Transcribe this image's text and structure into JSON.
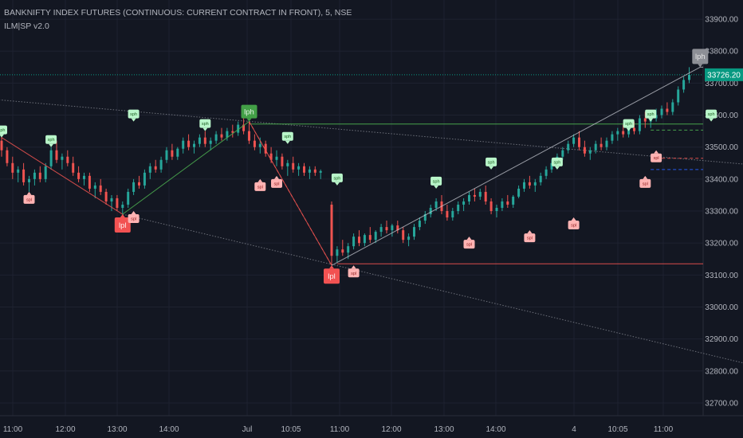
{
  "header": {
    "title": "BANKNIFTY INDEX FUTURES (CONTINUOUS: CURRENT CONTRACT IN FRONT), 5, NSE",
    "indicator": "ILM|SP v2.0"
  },
  "colors": {
    "background": "#131722",
    "grid": "#1e2230",
    "up": "#26a69a",
    "down": "#ef5350",
    "swing_high": "#4caf50",
    "swing_low": "#ef5350",
    "current_price_badge": "#089981"
  },
  "chart_data": {
    "type": "candlestick",
    "symbol": "BANKNIFTY1!",
    "interval": "5",
    "ylim": [
      32660,
      33960
    ],
    "y_ticks": [
      33900,
      33800,
      33700,
      33600,
      33500,
      33400,
      33300,
      33200,
      33100,
      33000,
      32900,
      32800,
      32700
    ],
    "y_tick_labels": [
      "33900.00",
      "33800.00",
      "33700.00",
      "33600.00",
      "33500.00",
      "33400.00",
      "33300.00",
      "33200.00",
      "33100.00",
      "33000.00",
      "32900.00",
      "32800.00",
      "32700.00"
    ],
    "x_tick_labels": [
      "11:00",
      "12:00",
      "13:00",
      "14:00",
      "Jul",
      "10:05",
      "11:00",
      "12:00",
      "13:00",
      "14:00",
      "4",
      "10:05",
      "11:00"
    ],
    "x_range_bars": [
      0,
      180
    ],
    "current_price": 33726.2,
    "current_price_label": "33726.20",
    "swing_path_day1": [
      [
        0,
        33530
      ],
      [
        22,
        33290
      ],
      [
        45,
        33580
      ],
      [
        60,
        33130
      ]
    ],
    "swing_path_day2": [
      [
        60,
        33130
      ],
      [
        84,
        33360
      ],
      [
        106,
        33550
      ],
      [
        127,
        33750
      ]
    ],
    "candles_day1": [
      [
        33520,
        33540,
        33470,
        33490
      ],
      [
        33490,
        33500,
        33440,
        33450
      ],
      [
        33450,
        33470,
        33400,
        33420
      ],
      [
        33420,
        33440,
        33390,
        33430
      ],
      [
        33430,
        33450,
        33380,
        33390
      ],
      [
        33390,
        33410,
        33360,
        33400
      ],
      [
        33400,
        33430,
        33380,
        33420
      ],
      [
        33420,
        33440,
        33390,
        33400
      ],
      [
        33400,
        33450,
        33390,
        33440
      ],
      [
        33440,
        33500,
        33430,
        33490
      ],
      [
        33490,
        33520,
        33450,
        33460
      ],
      [
        33460,
        33480,
        33430,
        33470
      ],
      [
        33470,
        33490,
        33440,
        33450
      ],
      [
        33450,
        33470,
        33410,
        33420
      ],
      [
        33420,
        33440,
        33390,
        33400
      ],
      [
        33400,
        33420,
        33380,
        33410
      ],
      [
        33410,
        33420,
        33360,
        33370
      ],
      [
        33370,
        33390,
        33340,
        33380
      ],
      [
        33380,
        33400,
        33350,
        33360
      ],
      [
        33360,
        33370,
        33320,
        33330
      ],
      [
        33330,
        33350,
        33300,
        33340
      ],
      [
        33340,
        33350,
        33300,
        33310
      ],
      [
        33310,
        33330,
        33290,
        33320
      ],
      [
        33320,
        33370,
        33310,
        33360
      ],
      [
        33360,
        33400,
        33350,
        33390
      ],
      [
        33390,
        33410,
        33370,
        33380
      ],
      [
        33380,
        33430,
        33370,
        33420
      ],
      [
        33420,
        33450,
        33400,
        33440
      ],
      [
        33440,
        33460,
        33420,
        33430
      ],
      [
        33430,
        33470,
        33420,
        33460
      ],
      [
        33460,
        33500,
        33450,
        33490
      ],
      [
        33490,
        33510,
        33460,
        33470
      ],
      [
        33470,
        33500,
        33460,
        33495
      ],
      [
        33495,
        33530,
        33480,
        33520
      ],
      [
        33520,
        33540,
        33490,
        33500
      ],
      [
        33500,
        33520,
        33480,
        33510
      ],
      [
        33510,
        33540,
        33500,
        33530
      ],
      [
        33530,
        33550,
        33500,
        33510
      ],
      [
        33510,
        33530,
        33490,
        33520
      ],
      [
        33520,
        33550,
        33510,
        33540
      ],
      [
        33540,
        33560,
        33520,
        33530
      ],
      [
        33530,
        33560,
        33520,
        33550
      ],
      [
        33550,
        33570,
        33530,
        33545
      ],
      [
        33545,
        33580,
        33535,
        33570
      ],
      [
        33570,
        33590,
        33540,
        33550
      ],
      [
        33550,
        33580,
        33510,
        33520
      ],
      [
        33520,
        33540,
        33490,
        33500
      ],
      [
        33500,
        33530,
        33480,
        33510
      ],
      [
        33510,
        33520,
        33470,
        33480
      ],
      [
        33480,
        33500,
        33450,
        33460
      ],
      [
        33460,
        33490,
        33440,
        33470
      ],
      [
        33470,
        33480,
        33430,
        33440
      ],
      [
        33440,
        33460,
        33410,
        33450
      ],
      [
        33450,
        33470,
        33420,
        33430
      ],
      [
        33430,
        33450,
        33410,
        33440
      ],
      [
        33440,
        33450,
        33410,
        33420
      ],
      [
        33420,
        33440,
        33400,
        33430
      ],
      [
        33430,
        33440,
        33410,
        33420
      ],
      [
        33420,
        33430,
        33400,
        33425
      ]
    ],
    "candles_day2": [
      [
        33320,
        33330,
        33130,
        33160
      ],
      [
        33160,
        33190,
        33140,
        33180
      ],
      [
        33180,
        33210,
        33160,
        33170
      ],
      [
        33170,
        33200,
        33150,
        33190
      ],
      [
        33190,
        33230,
        33180,
        33220
      ],
      [
        33220,
        33240,
        33190,
        33200
      ],
      [
        33200,
        33230,
        33190,
        33225
      ],
      [
        33225,
        33250,
        33200,
        33210
      ],
      [
        33210,
        33240,
        33200,
        33235
      ],
      [
        33235,
        33260,
        33220,
        33250
      ],
      [
        33250,
        33270,
        33230,
        33240
      ],
      [
        33240,
        33260,
        33220,
        33255
      ],
      [
        33255,
        33270,
        33230,
        33240
      ],
      [
        33240,
        33250,
        33200,
        33210
      ],
      [
        33210,
        33230,
        33190,
        33220
      ],
      [
        33220,
        33260,
        33210,
        33250
      ],
      [
        33250,
        33280,
        33240,
        33270
      ],
      [
        33270,
        33300,
        33260,
        33290
      ],
      [
        33290,
        33320,
        33280,
        33310
      ],
      [
        33310,
        33340,
        33300,
        33330
      ],
      [
        33330,
        33350,
        33290,
        33300
      ],
      [
        33300,
        33320,
        33270,
        33280
      ],
      [
        33280,
        33310,
        33270,
        33300
      ],
      [
        33300,
        33330,
        33290,
        33320
      ],
      [
        33320,
        33340,
        33300,
        33330
      ],
      [
        33330,
        33360,
        33320,
        33350
      ],
      [
        33350,
        33370,
        33330,
        33345
      ],
      [
        33345,
        33370,
        33335,
        33360
      ],
      [
        33360,
        33380,
        33320,
        33330
      ],
      [
        33330,
        33340,
        33290,
        33300
      ],
      [
        33300,
        33320,
        33280,
        33310
      ],
      [
        33310,
        33340,
        33300,
        33330
      ],
      [
        33330,
        33350,
        33310,
        33320
      ],
      [
        33320,
        33350,
        33310,
        33345
      ],
      [
        33345,
        33380,
        33340,
        33370
      ],
      [
        33370,
        33400,
        33360,
        33390
      ],
      [
        33390,
        33410,
        33370,
        33380
      ],
      [
        33380,
        33400,
        33360,
        33390
      ],
      [
        33390,
        33420,
        33380,
        33410
      ],
      [
        33410,
        33440,
        33400,
        33430
      ],
      [
        33430,
        33460,
        33420,
        33450
      ],
      [
        33450,
        33480,
        33440,
        33470
      ],
      [
        33470,
        33500,
        33460,
        33490
      ],
      [
        33490,
        33520,
        33480,
        33510
      ],
      [
        33510,
        33540,
        33500,
        33530
      ],
      [
        33530,
        33550,
        33490,
        33500
      ],
      [
        33500,
        33520,
        33470,
        33480
      ],
      [
        33480,
        33500,
        33460,
        33490
      ],
      [
        33490,
        33520,
        33480,
        33510
      ],
      [
        33510,
        33530,
        33490,
        33500
      ],
      [
        33500,
        33530,
        33490,
        33520
      ],
      [
        33520,
        33550,
        33510,
        33540
      ],
      [
        33540,
        33560,
        33520,
        33550
      ],
      [
        33550,
        33570,
        33530,
        33540
      ],
      [
        33540,
        33570,
        33530,
        33560
      ],
      [
        33560,
        33580,
        33540,
        33550
      ],
      [
        33550,
        33600,
        33540,
        33590
      ],
      [
        33590,
        33610,
        33560,
        33580
      ],
      [
        33580,
        33600,
        33560,
        33590
      ],
      [
        33590,
        33620,
        33580,
        33600
      ],
      [
        33600,
        33630,
        33590,
        33620
      ],
      [
        33620,
        33640,
        33600,
        33610
      ],
      [
        33610,
        33650,
        33600,
        33640
      ],
      [
        33640,
        33690,
        33630,
        33680
      ],
      [
        33680,
        33720,
        33670,
        33710
      ],
      [
        33710,
        33750,
        33700,
        33726
      ]
    ],
    "levels": [
      {
        "price": 33572,
        "from_bar": 45,
        "color": "#4caf50",
        "style": "solid"
      },
      {
        "price": 33553,
        "from_bar": 118,
        "color": "#4caf50",
        "style": "dashed"
      },
      {
        "price": 33465,
        "from_bar": 118,
        "color": "#ef5350",
        "style": "dashed"
      },
      {
        "price": 33430,
        "from_bar": 118,
        "color": "#2962ff",
        "style": "dashed"
      },
      {
        "price": 33135,
        "from_bar": 61,
        "color": "#ef5350",
        "style": "solid"
      },
      {
        "price": 33750,
        "from_bar": 127,
        "color": "#b2b5be",
        "style": "solid"
      }
    ],
    "trendlines": [
      {
        "from": [
          -2,
          33650
        ],
        "to": [
          180,
          33380
        ],
        "color": "#8a8d96"
      },
      {
        "from": [
          22,
          33290
        ],
        "to": [
          170,
          32680
        ],
        "color": "#8a8d96"
      }
    ],
    "labels": [
      {
        "text": "lph",
        "bar": 45,
        "price": 33580,
        "kind": "big-high"
      },
      {
        "text": "lpl",
        "bar": 22,
        "price": 33290,
        "kind": "big-low"
      },
      {
        "text": "lpl",
        "bar": 60,
        "price": 33130,
        "kind": "big-low"
      },
      {
        "text": "lph",
        "bar": 127,
        "price": 33750,
        "kind": "gray-high"
      },
      {
        "text": "sph",
        "bar": 0,
        "price": 33530,
        "kind": "small-high"
      },
      {
        "text": "sph",
        "bar": 9,
        "price": 33500,
        "kind": "small-high"
      },
      {
        "text": "sph",
        "bar": 24,
        "price": 33580,
        "kind": "small-high"
      },
      {
        "text": "sph",
        "bar": 37,
        "price": 33550,
        "kind": "small-high"
      },
      {
        "text": "sph",
        "bar": 52,
        "price": 33510,
        "kind": "small-high"
      },
      {
        "text": "sph",
        "bar": 61,
        "price": 33380,
        "kind": "small-high"
      },
      {
        "text": "sph",
        "bar": 79,
        "price": 33370,
        "kind": "small-high"
      },
      {
        "text": "sph",
        "bar": 89,
        "price": 33430,
        "kind": "small-high"
      },
      {
        "text": "sph",
        "bar": 101,
        "price": 33430,
        "kind": "small-high"
      },
      {
        "text": "sph",
        "bar": 114,
        "price": 33550,
        "kind": "small-high"
      },
      {
        "text": "sph",
        "bar": 118,
        "price": 33580,
        "kind": "small-high"
      },
      {
        "text": "sph",
        "bar": 129,
        "price": 33580,
        "kind": "small-high"
      },
      {
        "text": "spl",
        "bar": 5,
        "price": 33360,
        "kind": "small-low"
      },
      {
        "text": "spl",
        "bar": 24,
        "price": 33300,
        "kind": "small-low"
      },
      {
        "text": "spl",
        "bar": 47,
        "price": 33400,
        "kind": "small-low"
      },
      {
        "text": "spl",
        "bar": 50,
        "price": 33410,
        "kind": "small-low"
      },
      {
        "text": "spl",
        "bar": 64,
        "price": 33130,
        "kind": "small-low"
      },
      {
        "text": "spl",
        "bar": 85,
        "price": 33220,
        "kind": "small-low"
      },
      {
        "text": "spl",
        "bar": 96,
        "price": 33240,
        "kind": "small-low"
      },
      {
        "text": "spl",
        "bar": 104,
        "price": 33280,
        "kind": "small-low"
      },
      {
        "text": "spl",
        "bar": 117,
        "price": 33410,
        "kind": "small-low"
      },
      {
        "text": "spl",
        "bar": 119,
        "price": 33490,
        "kind": "small-low"
      }
    ]
  }
}
